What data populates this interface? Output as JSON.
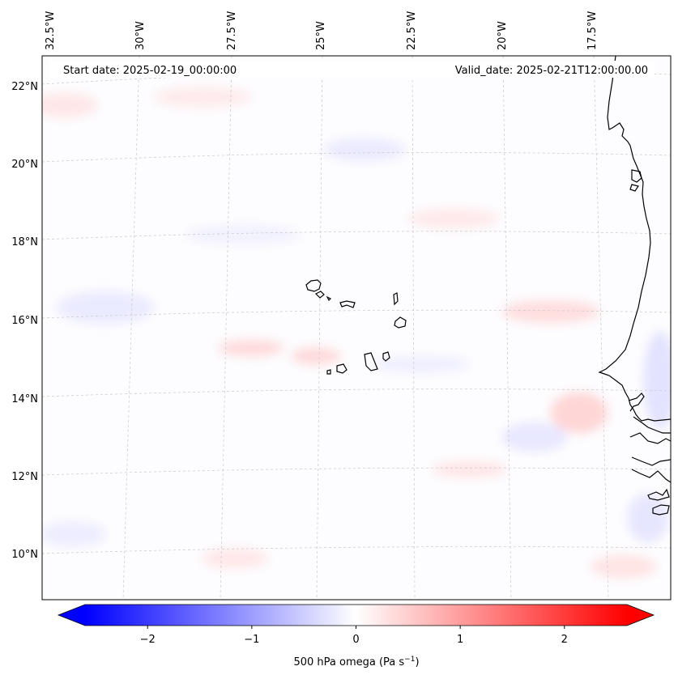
{
  "map": {
    "lon_ticks": [
      "32.5°W",
      "30°W",
      "27.5°W",
      "25°W",
      "22.5°W",
      "20°W",
      "17.5°W"
    ],
    "lat_ticks": [
      "22°N",
      "20°N",
      "18°N",
      "16°N",
      "14°N",
      "12°N",
      "10°N"
    ],
    "start_date": "Start date: 2025-02-19_00:00:00",
    "valid_date": "Valid_date: 2025-02-21T12:00:00.00"
  },
  "colorbar": {
    "ticks": [
      "−2",
      "−1",
      "0",
      "1",
      "2"
    ],
    "label": "500 hPa omega (Pa s",
    "label_sup": "−1",
    "label_end": ")",
    "min": -2.6,
    "max": 2.6,
    "colors": {
      "negative": "#0000ff",
      "neutral": "#ffffff",
      "positive": "#ff0000"
    }
  },
  "colors": {
    "land_outline": "#000000",
    "gridline": "#b0b0b0"
  }
}
